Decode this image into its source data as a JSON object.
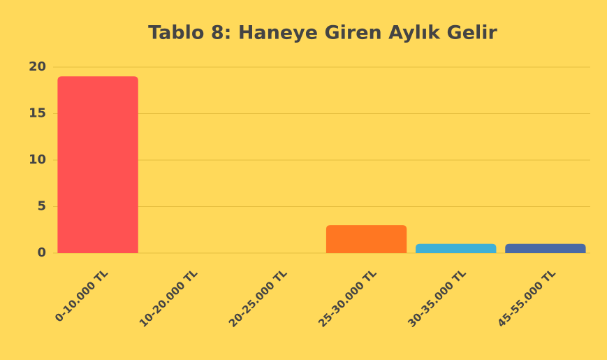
{
  "chart_data": {
    "type": "bar",
    "title": "Tablo 8: Haneye Giren Aylık Gelir",
    "categories": [
      "0-10.000 TL",
      "10-20.000 TL",
      "20-25.000 TL",
      "25-30.000 TL",
      "30-35.000 TL",
      "45-55.000 TL"
    ],
    "values": [
      19,
      0,
      0,
      3,
      1,
      1
    ],
    "colors": [
      "#ff5252",
      null,
      null,
      "#ff7722",
      "#3fb0d6",
      "#4a6aa5"
    ],
    "ylim": [
      0,
      20
    ],
    "yticks": [
      0,
      5,
      10,
      15,
      20
    ],
    "grid": true
  }
}
